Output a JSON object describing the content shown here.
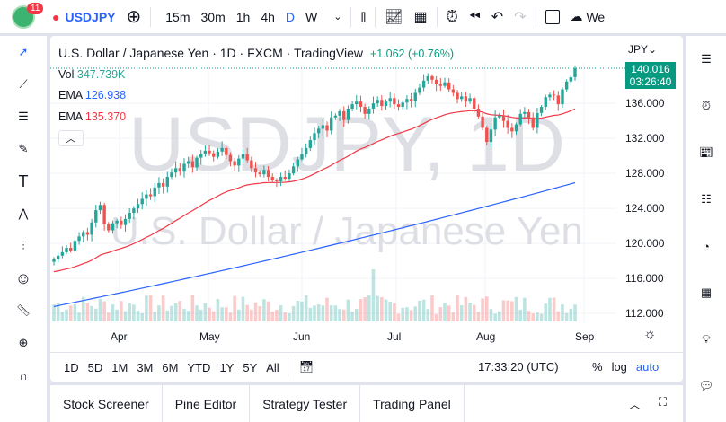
{
  "toolbar": {
    "notifications": "11",
    "symbol": "USDJPY",
    "intervals": [
      "15m",
      "30m",
      "1h",
      "4h",
      "D",
      "W"
    ],
    "active_interval": "D",
    "cloud_label": "We"
  },
  "chart": {
    "title": "U.S. Dollar / Japanese Yen · 1D · FXCM · TradingView",
    "change": "+1.062 (+0.76%)",
    "vol_label": "Vol",
    "vol_value": "347.739K",
    "ema1_label": "EMA",
    "ema1_value": "126.938",
    "ema2_label": "EMA",
    "ema2_value": "135.370",
    "watermark_symbol": "USDJPY, 1D",
    "watermark_name": "U.S. Dollar / Japanese Yen",
    "currency": "JPY",
    "last_price": "140.016",
    "countdown": "03:26:40",
    "colors": {
      "up": "#26a69a",
      "down": "#ef5350",
      "ema_blue": "#2962ff",
      "ema_red": "#f23645",
      "price_tag": "#089981"
    }
  },
  "chart_data": {
    "type": "candlestick",
    "ylim": [
      110.5,
      143
    ],
    "y_ticks": [
      "136.000",
      "132.000",
      "128.000",
      "124.000",
      "120.000",
      "116.000",
      "112.000"
    ],
    "y_tick_values": [
      136,
      132,
      128,
      124,
      120,
      116,
      112
    ],
    "x_ticks": [
      "Apr",
      "May",
      "Jun",
      "Jul",
      "Aug",
      "Sep"
    ],
    "closes": [
      118.2,
      118.6,
      119.0,
      119.5,
      119.2,
      120.3,
      120.8,
      121.3,
      121.0,
      122.4,
      123.8,
      124.4,
      122.2,
      121.5,
      122.3,
      122.6,
      122.1,
      122.8,
      123.5,
      124.0,
      124.5,
      125.1,
      125.6,
      125.4,
      126.4,
      126.9,
      126.5,
      127.6,
      128.1,
      128.6,
      128.2,
      129.1,
      129.4,
      128.7,
      129.8,
      130.2,
      130.6,
      130.3,
      129.9,
      130.5,
      130.9,
      130.1,
      129.4,
      128.9,
      129.7,
      130.2,
      129.5,
      128.6,
      128.1,
      127.9,
      128.4,
      127.6,
      127.2,
      127.1,
      127.6,
      127.4,
      128.0,
      128.8,
      129.6,
      130.2,
      130.9,
      131.8,
      132.6,
      133.1,
      133.5,
      132.9,
      134.4,
      134.6,
      135.1,
      134.1,
      135.4,
      135.9,
      136.2,
      135.6,
      134.8,
      135.4,
      136.0,
      136.4,
      135.7,
      136.2,
      136.6,
      135.9,
      135.6,
      136.1,
      136.5,
      136.3,
      137.2,
      137.8,
      138.6,
      139.1,
      138.7,
      138.2,
      138.0,
      138.4,
      137.6,
      137.2,
      136.5,
      136.8,
      136.2,
      136.6,
      135.4,
      134.5,
      133.2,
      131.6,
      133.0,
      134.4,
      134.6,
      134.0,
      133.2,
      132.8,
      133.6,
      134.8,
      135.0,
      134.4,
      133.2,
      134.9,
      135.6,
      136.7,
      137.0,
      136.9,
      135.9,
      137.6,
      138.5,
      139.0,
      140.0
    ],
    "ema_blue": {
      "start": 112.8,
      "end": 126.938
    },
    "ema_red": {
      "start": 116.7,
      "end": 135.37
    }
  },
  "ranges": [
    "1D",
    "5D",
    "1M",
    "3M",
    "6M",
    "YTD",
    "1Y",
    "5Y",
    "All"
  ],
  "time": "17:33:20 (UTC)",
  "scale_opts": [
    "%",
    "log",
    "auto"
  ],
  "bottom_tabs": [
    "Stock Screener",
    "Pine Editor",
    "Strategy Tester",
    "Trading Panel"
  ]
}
